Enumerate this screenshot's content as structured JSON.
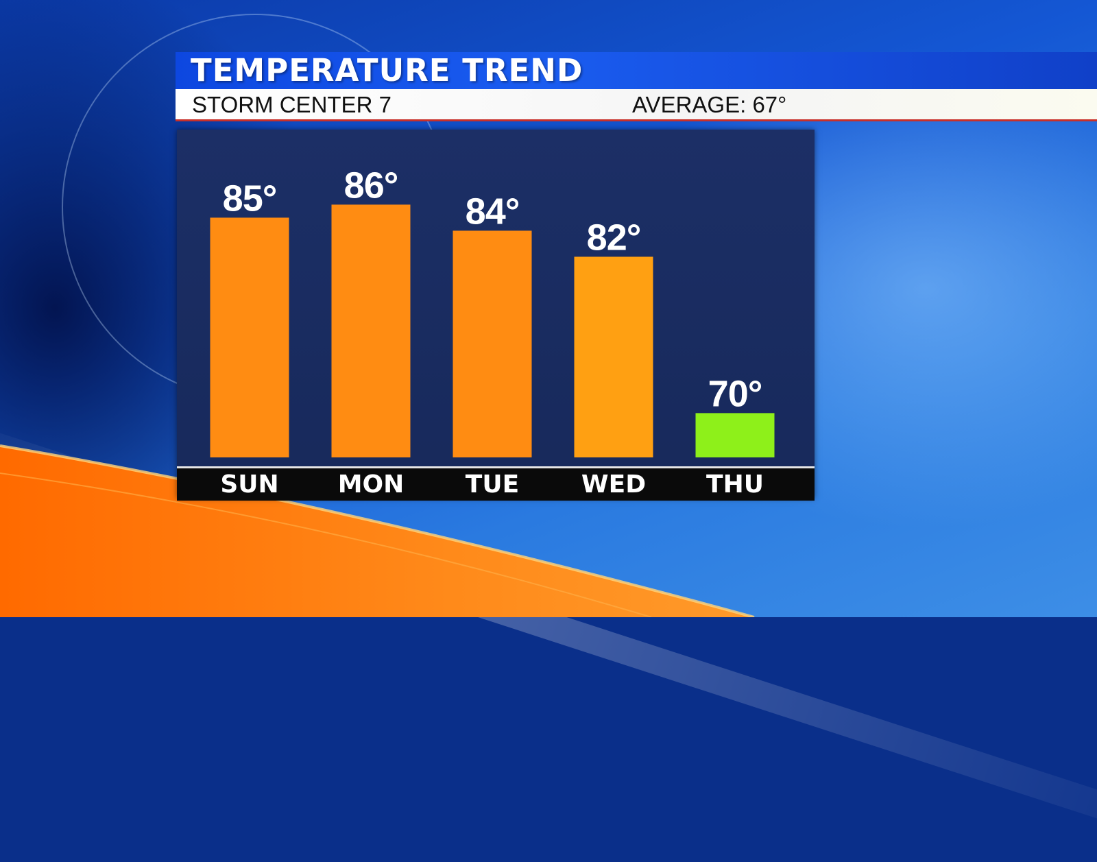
{
  "header": {
    "title": "TEMPERATURE TREND",
    "station": "STORM CENTER 7",
    "average": "AVERAGE: 67°"
  },
  "colors": {
    "bar_warm": "#ff8c12",
    "bar_cool": "#8ef01a",
    "title_bar": "#1a5cf0",
    "panel": "#1c2f66"
  },
  "chart_data": {
    "type": "bar",
    "categories": [
      "SUN",
      "MON",
      "TUE",
      "WED",
      "THU"
    ],
    "values": [
      85,
      86,
      84,
      82,
      70
    ],
    "value_labels": [
      "85°",
      "86°",
      "84°",
      "82°",
      "70°"
    ],
    "bar_colors": [
      "#ff8c12",
      "#ff8c12",
      "#ff8c12",
      "#ffa012",
      "#8ef01a"
    ],
    "title": "TEMPERATURE TREND",
    "xlabel": "",
    "ylabel": "",
    "grid": false,
    "legend": "none"
  }
}
